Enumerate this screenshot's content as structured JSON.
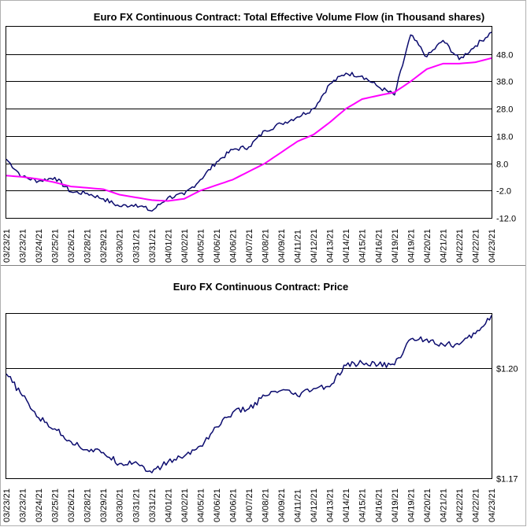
{
  "chart_data": [
    {
      "type": "line",
      "title": "Euro FX Continuous Contract: Total Effective Volume Flow (in Thousand shares)",
      "xlabel": "",
      "ylabel": "",
      "ylim": [
        -12.0,
        58.0
      ],
      "yticks": [
        "48.0",
        "38.0",
        "28.0",
        "18.0",
        "8.0",
        "-2.0",
        "-12.0"
      ],
      "grid": "horizontal",
      "legend": "none",
      "categories": [
        "03/23/21",
        "03/23/21",
        "03/24/21",
        "03/25/21",
        "03/26/21",
        "03/28/21",
        "03/29/21",
        "03/30/21",
        "03/31/21",
        "03/31/21",
        "04/01/21",
        "04/02/21",
        "04/05/21",
        "04/06/21",
        "04/06/21",
        "04/07/21",
        "04/08/21",
        "04/09/21",
        "04/11/21",
        "04/12/21",
        "04/13/21",
        "04/14/21",
        "04/15/21",
        "04/16/21",
        "04/19/21",
        "04/19/21",
        "04/20/21",
        "04/21/21",
        "04/22/21",
        "04/22/21",
        "04/23/21"
      ],
      "series": [
        {
          "color": "#0b0b6e",
          "values": [
            9.5,
            3.0,
            1.5,
            2.8,
            -2.5,
            -3.0,
            -5.0,
            -7.8,
            -7.0,
            -9.5,
            -4.5,
            -3.5,
            2.0,
            8.5,
            13.0,
            14.0,
            20.0,
            22.5,
            25.0,
            28.0,
            37.0,
            41.0,
            40.0,
            36.0,
            33.0,
            55.0,
            47.0,
            53.0,
            46.0,
            51.0,
            56.0
          ]
        },
        {
          "color": "#ff00ff",
          "values": [
            3.5,
            3.0,
            2.2,
            1.0,
            -0.5,
            -1.0,
            -1.5,
            -3.5,
            -4.5,
            -5.5,
            -5.8,
            -5.0,
            -2.0,
            0.0,
            2.0,
            5.0,
            8.0,
            12.0,
            16.0,
            18.5,
            23.0,
            28.0,
            31.5,
            32.8,
            34.0,
            38.0,
            42.5,
            44.5,
            44.5,
            45.0,
            46.5
          ]
        }
      ]
    },
    {
      "type": "line",
      "title": "Euro FX Continuous Contract: Price",
      "xlabel": "",
      "ylabel": "",
      "ylim": [
        1.17,
        1.2149
      ],
      "yticks": [
        "$1.20",
        "$1.17"
      ],
      "grid": "horizontal",
      "legend": "none",
      "categories": [
        "03/23/21",
        "03/23/21",
        "03/24/21",
        "03/25/21",
        "03/26/21",
        "03/28/21",
        "03/29/21",
        "03/30/21",
        "03/31/21",
        "03/31/21",
        "04/01/21",
        "04/02/21",
        "04/05/21",
        "04/06/21",
        "04/06/21",
        "04/07/21",
        "04/08/21",
        "04/09/21",
        "04/11/21",
        "04/12/21",
        "04/13/21",
        "04/14/21",
        "04/15/21",
        "04/16/21",
        "04/19/21",
        "04/19/21",
        "04/20/21",
        "04/21/21",
        "04/22/21",
        "04/22/21",
        "04/23/21"
      ],
      "series": [
        {
          "color": "#0b0b6e",
          "values": [
            1.1985,
            1.1925,
            1.1865,
            1.1835,
            1.18,
            1.1778,
            1.177,
            1.174,
            1.1745,
            1.1715,
            1.1745,
            1.176,
            1.1788,
            1.184,
            1.188,
            1.189,
            1.1925,
            1.194,
            1.1925,
            1.1945,
            1.195,
            1.2008,
            1.2015,
            1.201,
            1.201,
            1.208,
            1.208,
            1.2065,
            1.2065,
            1.2095,
            1.2145
          ]
        }
      ]
    }
  ]
}
